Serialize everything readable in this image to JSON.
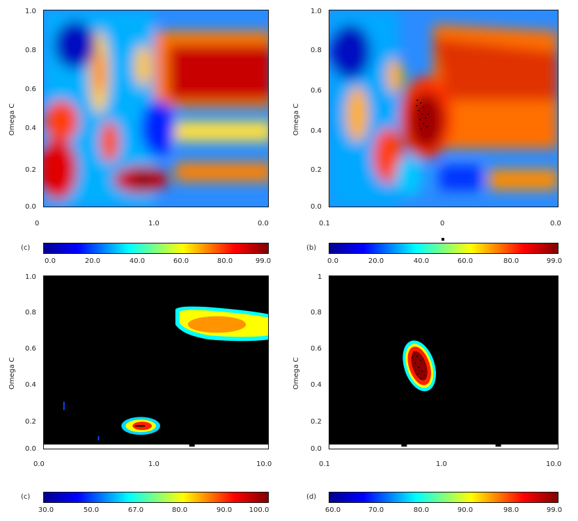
{
  "chart_data": [
    {
      "type": "heatmap",
      "panel": "top-left",
      "ylabel": "Omega C",
      "x_ticks": [
        "0",
        "1.0",
        "0.0"
      ],
      "y_ticks": [
        "1.0",
        "0.8",
        "0.6",
        "0.4",
        "0.2",
        "0.0"
      ],
      "colorbar_label": "(c)",
      "colorbar_ticks": [
        "0.0",
        "20.0",
        "40.0",
        "60.0",
        "80.0",
        "99.0"
      ],
      "colormap": [
        "#00008f",
        "#0000ff",
        "#00ffff",
        "#ffff00",
        "#ff0000",
        "#800000"
      ]
    },
    {
      "type": "heatmap",
      "panel": "top-right",
      "ylabel": "Omega C",
      "x_ticks": [
        "0.1",
        "0",
        "0.0"
      ],
      "y_ticks": [
        "1.0",
        "0.8",
        "0.6",
        "0.4",
        "0.2",
        "0.0"
      ],
      "colorbar_label": "(b)",
      "colorbar_ticks": [
        "0.0",
        "20.0",
        "40.0",
        "60.0",
        "80.0",
        "99.0"
      ],
      "colormap": [
        "#00008f",
        "#0000ff",
        "#00ffff",
        "#ffff00",
        "#ff0000",
        "#800000"
      ]
    },
    {
      "type": "heatmap",
      "panel": "bottom-left",
      "ylabel": "Omega C",
      "x_ticks": [
        "0.0",
        "1.0",
        "10.0"
      ],
      "y_ticks": [
        "1.0",
        "0.8",
        "0.6",
        "0.4",
        "0.2",
        "0.0"
      ],
      "colorbar_label": "(c)",
      "colorbar_ticks": [
        "30.0",
        "50.0",
        "67.0",
        "80.0",
        "90.0",
        "100.0"
      ],
      "colormap": [
        "#00008f",
        "#0000ff",
        "#00ffff",
        "#ffff00",
        "#ff0000",
        "#800000"
      ]
    },
    {
      "type": "heatmap",
      "panel": "bottom-right",
      "ylabel": "Omega C",
      "x_ticks": [
        "0.1",
        "1.0",
        "10.0"
      ],
      "y_ticks": [
        "1",
        "0.8",
        "0.6",
        "0.4",
        "0.2",
        "0.0"
      ],
      "colorbar_label": "(d)",
      "colorbar_ticks": [
        "60.0",
        "70.0",
        "80.0",
        "90.0",
        "98.0",
        "99.0"
      ],
      "colormap": [
        "#00008f",
        "#0000ff",
        "#00ffff",
        "#ffff00",
        "#ff0000",
        "#800000"
      ]
    }
  ]
}
